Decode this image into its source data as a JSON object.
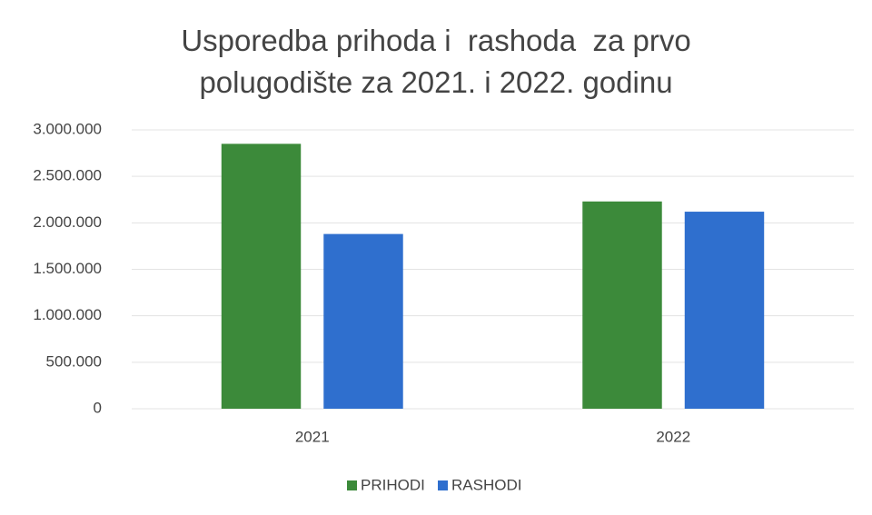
{
  "chart_data": {
    "type": "bar",
    "title": "Usporedba prihoda i  rashoda  za prvo polugodište za 2021. i 2022. godinu",
    "categories": [
      "2021",
      "2022"
    ],
    "series": [
      {
        "name": "PRIHODI",
        "color": "#3c8a3a",
        "values": [
          2850000,
          2230000
        ]
      },
      {
        "name": "RASHODI",
        "color": "#2f6fce",
        "values": [
          1880000,
          2120000
        ]
      }
    ],
    "ylim": [
      0,
      3000000
    ],
    "yticks": [
      0,
      {
        "value": 500000,
        "label": "500.000"
      },
      {
        "value": 1000000,
        "label": "1.000.000"
      },
      {
        "value": 1500000,
        "label": "1.500.000"
      },
      {
        "value": 2000000,
        "label": "2.000.000"
      },
      {
        "value": 2500000,
        "label": "2.500.000"
      },
      {
        "value": 3000000,
        "label": "3.000.000"
      }
    ],
    "grid": true,
    "legend": "bottom"
  }
}
